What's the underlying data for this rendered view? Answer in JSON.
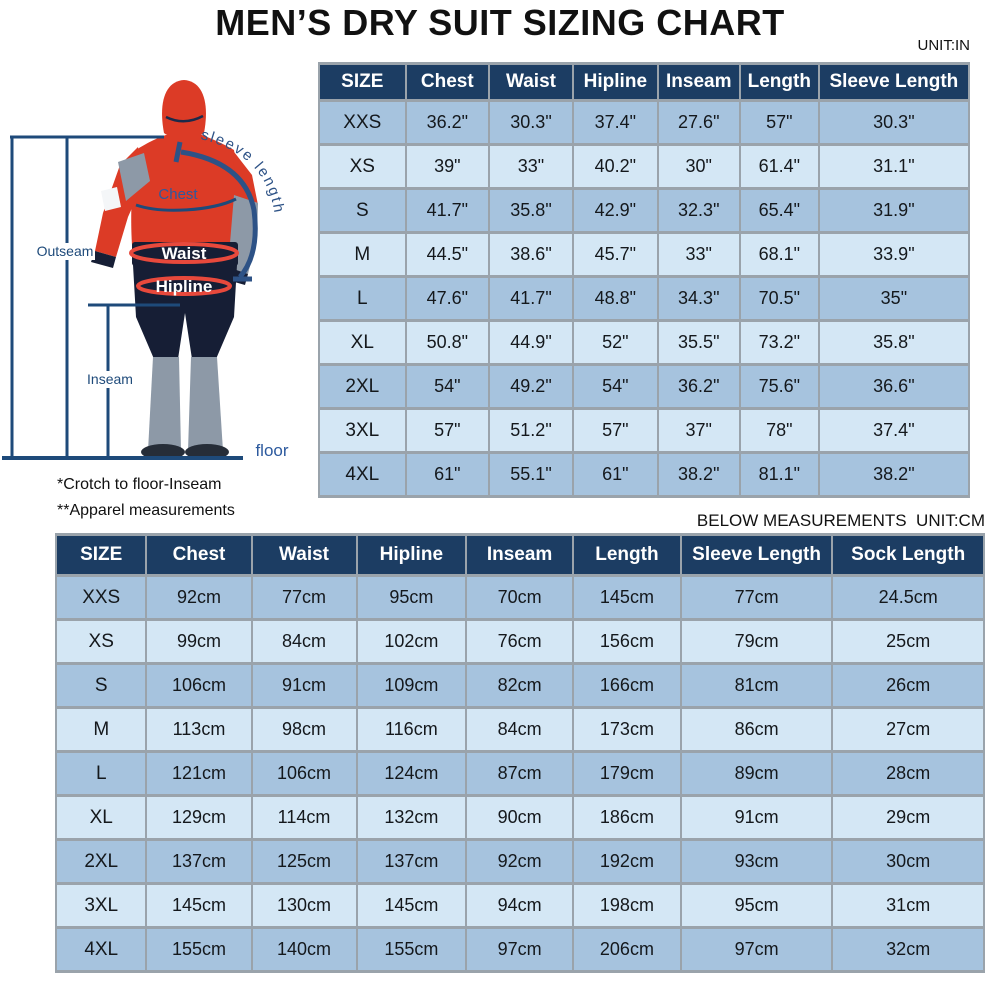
{
  "title": "MEN’S DRY SUIT SIZING CHART",
  "diagram": {
    "labels": {
      "sleeve_length": "sleeve length",
      "chest": "Chest",
      "outseam": "Outseam",
      "waist": "Waist",
      "hipline": "Hipline",
      "inseam": "Inseam",
      "floor": "floor"
    },
    "notes": [
      "*Crotch to floor-Inseam",
      "**Apparel measurements"
    ]
  },
  "inch_table": {
    "unit_label": "UNIT:IN",
    "headers": [
      "SIZE",
      "Chest",
      "Waist",
      "Hipline",
      "Inseam",
      "Length",
      "Sleeve Length"
    ],
    "rows": [
      [
        "XXS",
        "36.2\"",
        "30.3\"",
        "37.4\"",
        "27.6\"",
        "57\"",
        "30.3\""
      ],
      [
        "XS",
        "39\"",
        "33\"",
        "40.2\"",
        "30\"",
        "61.4\"",
        "31.1\""
      ],
      [
        "S",
        "41.7\"",
        "35.8\"",
        "42.9\"",
        "32.3\"",
        "65.4\"",
        "31.9\""
      ],
      [
        "M",
        "44.5\"",
        "38.6\"",
        "45.7\"",
        "33\"",
        "68.1\"",
        "33.9\""
      ],
      [
        "L",
        "47.6\"",
        "41.7\"",
        "48.8\"",
        "34.3\"",
        "70.5\"",
        "35\""
      ],
      [
        "XL",
        "50.8\"",
        "44.9\"",
        "52\"",
        "35.5\"",
        "73.2\"",
        "35.8\""
      ],
      [
        "2XL",
        "54\"",
        "49.2\"",
        "54\"",
        "36.2\"",
        "75.6\"",
        "36.6\""
      ],
      [
        "3XL",
        "57\"",
        "51.2\"",
        "57\"",
        "37\"",
        "78\"",
        "37.4\""
      ],
      [
        "4XL",
        "61\"",
        "55.1\"",
        "61\"",
        "38.2\"",
        "81.1\"",
        "38.2\""
      ]
    ]
  },
  "cm_table": {
    "unit_label": "BELOW MEASUREMENTS  UNIT:CM",
    "headers": [
      "SIZE",
      "Chest",
      "Waist",
      "Hipline",
      "Inseam",
      "Length",
      "Sleeve Length",
      "Sock Length"
    ],
    "rows": [
      [
        "XXS",
        "92cm",
        "77cm",
        "95cm",
        "70cm",
        "145cm",
        "77cm",
        "24.5cm"
      ],
      [
        "XS",
        "99cm",
        "84cm",
        "102cm",
        "76cm",
        "156cm",
        "79cm",
        "25cm"
      ],
      [
        "S",
        "106cm",
        "91cm",
        "109cm",
        "82cm",
        "166cm",
        "81cm",
        "26cm"
      ],
      [
        "M",
        "113cm",
        "98cm",
        "116cm",
        "84cm",
        "173cm",
        "86cm",
        "27cm"
      ],
      [
        "L",
        "121cm",
        "106cm",
        "124cm",
        "87cm",
        "179cm",
        "89cm",
        "28cm"
      ],
      [
        "XL",
        "129cm",
        "114cm",
        "132cm",
        "90cm",
        "186cm",
        "91cm",
        "29cm"
      ],
      [
        "2XL",
        "137cm",
        "125cm",
        "137cm",
        "92cm",
        "192cm",
        "93cm",
        "30cm"
      ],
      [
        "3XL",
        "145cm",
        "130cm",
        "145cm",
        "94cm",
        "198cm",
        "95cm",
        "31cm"
      ],
      [
        "4XL",
        "155cm",
        "140cm",
        "155cm",
        "97cm",
        "206cm",
        "97cm",
        "32cm"
      ]
    ]
  },
  "colors": {
    "header_bg": "#1c3d63",
    "row_medium": "#a6c3de",
    "row_light": "#d4e7f5",
    "grid_line": "#9aa3ab",
    "ann_dark": "#1e4a7a",
    "ann_blue": "#2d5a9e",
    "measure_red": "#e8493c",
    "suit_red": "#dc3b26",
    "suit_navy": "#161e35",
    "suit_gray": "#8d99a7"
  }
}
